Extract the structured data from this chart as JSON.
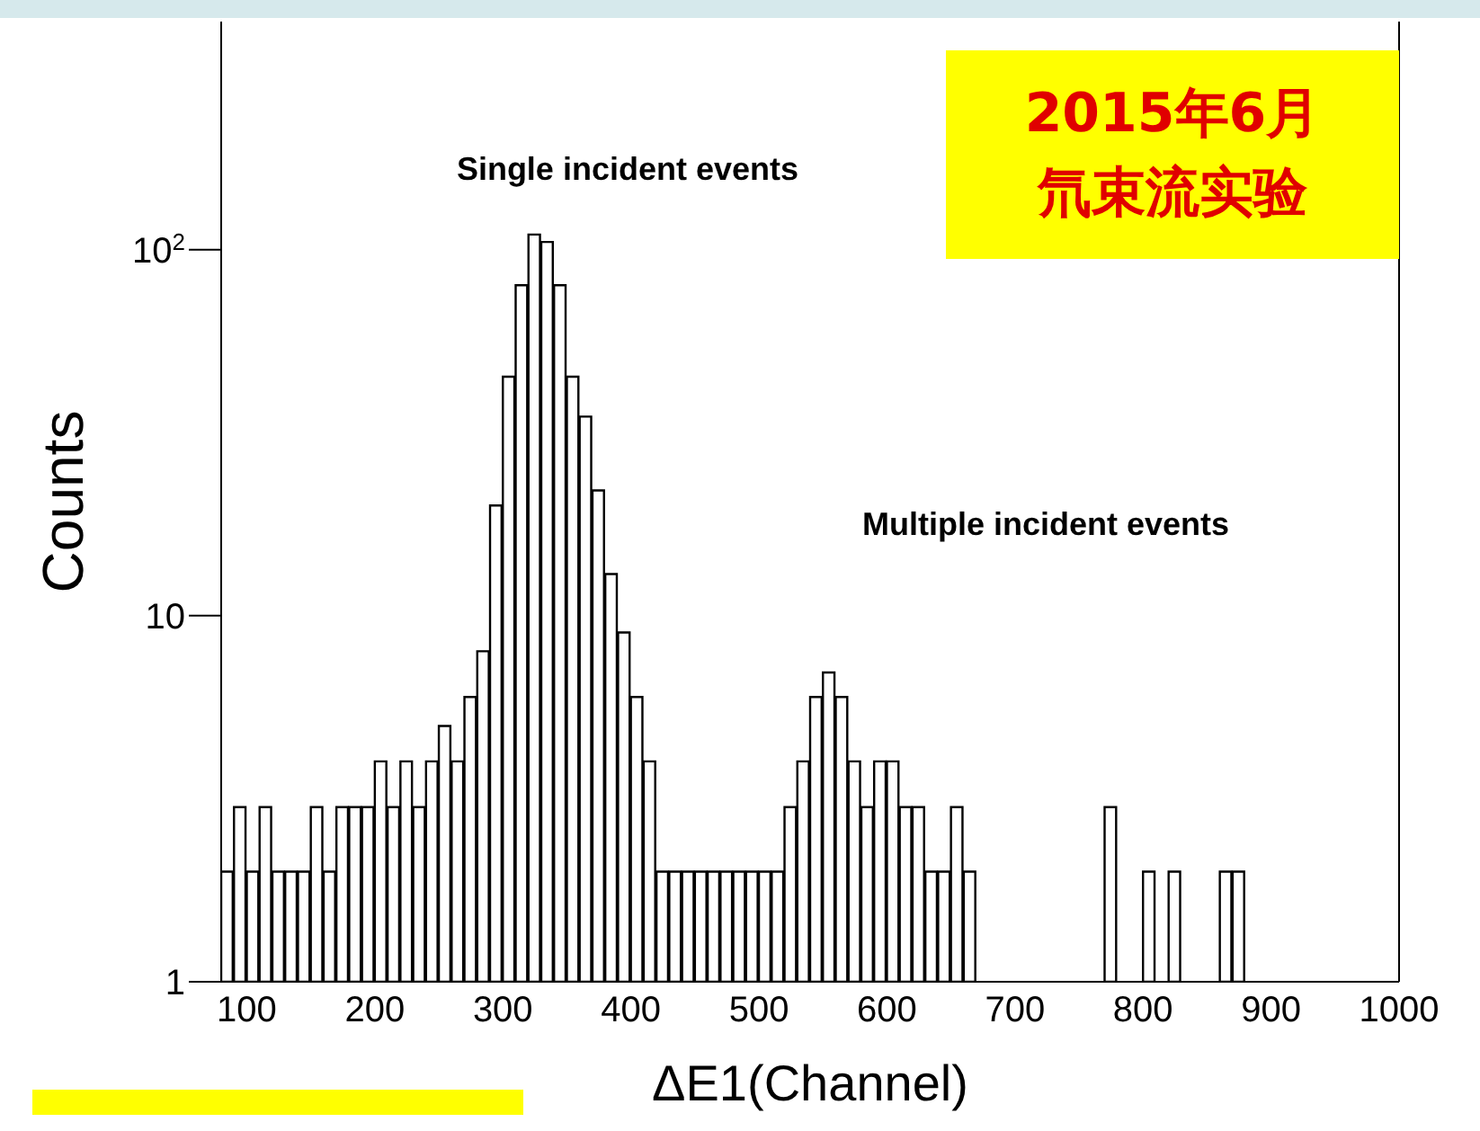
{
  "chart_data": {
    "type": "histogram",
    "title": "2015年6月",
    "subtitle": "氘束流实验",
    "xlabel": "ΔE1(Channel)",
    "ylabel": "Counts",
    "bins": [
      80,
      90,
      100,
      110,
      120,
      130,
      140,
      150,
      160,
      170,
      180,
      190,
      200,
      210,
      220,
      230,
      240,
      250,
      260,
      270,
      280,
      290,
      300,
      310,
      320,
      330,
      340,
      350,
      360,
      370,
      380,
      390,
      400,
      410,
      420,
      430,
      440,
      450,
      460,
      470,
      480,
      490,
      500,
      510,
      520,
      530,
      540,
      550,
      560,
      570,
      580,
      590,
      600,
      610,
      620,
      630,
      640,
      650,
      660,
      670,
      680,
      690,
      700,
      710,
      720,
      730,
      740,
      750,
      760,
      770,
      780,
      790,
      800,
      810,
      820,
      830,
      840,
      850,
      860,
      870,
      880,
      890,
      900,
      910,
      920,
      930,
      940,
      950,
      960,
      970,
      980,
      990,
      1000
    ],
    "values": [
      2,
      3,
      2,
      3,
      2,
      2,
      2,
      3,
      2,
      3,
      3,
      3,
      4,
      3,
      4,
      3,
      4,
      5,
      4,
      6,
      8,
      20,
      45,
      80,
      110,
      105,
      80,
      45,
      35,
      22,
      13,
      9,
      6,
      4,
      2,
      2,
      2,
      2,
      2,
      2,
      2,
      2,
      2,
      2,
      3,
      4,
      6,
      7,
      6,
      4,
      3,
      4,
      4,
      3,
      3,
      2,
      2,
      3,
      2,
      null,
      null,
      null,
      null,
      null,
      null,
      null,
      null,
      null,
      null,
      3,
      null,
      null,
      2,
      null,
      2,
      null,
      null,
      null,
      2,
      2,
      null,
      null,
      null,
      null,
      null,
      null,
      null,
      null,
      null,
      null,
      null,
      null
    ],
    "color": "#000000",
    "log": "y",
    "grid": false,
    "xlim": [
      80,
      1000
    ],
    "xticks": [
      100,
      200,
      300,
      400,
      500,
      600,
      700,
      800,
      900,
      1000
    ],
    "ylim": [
      1,
      420
    ],
    "yticks": [
      1,
      10,
      {
        "value": 100,
        "label": "10$^{2}$"
      }
    ],
    "annotations": [
      "Single incident events",
      "Multiple incident events"
    ]
  }
}
